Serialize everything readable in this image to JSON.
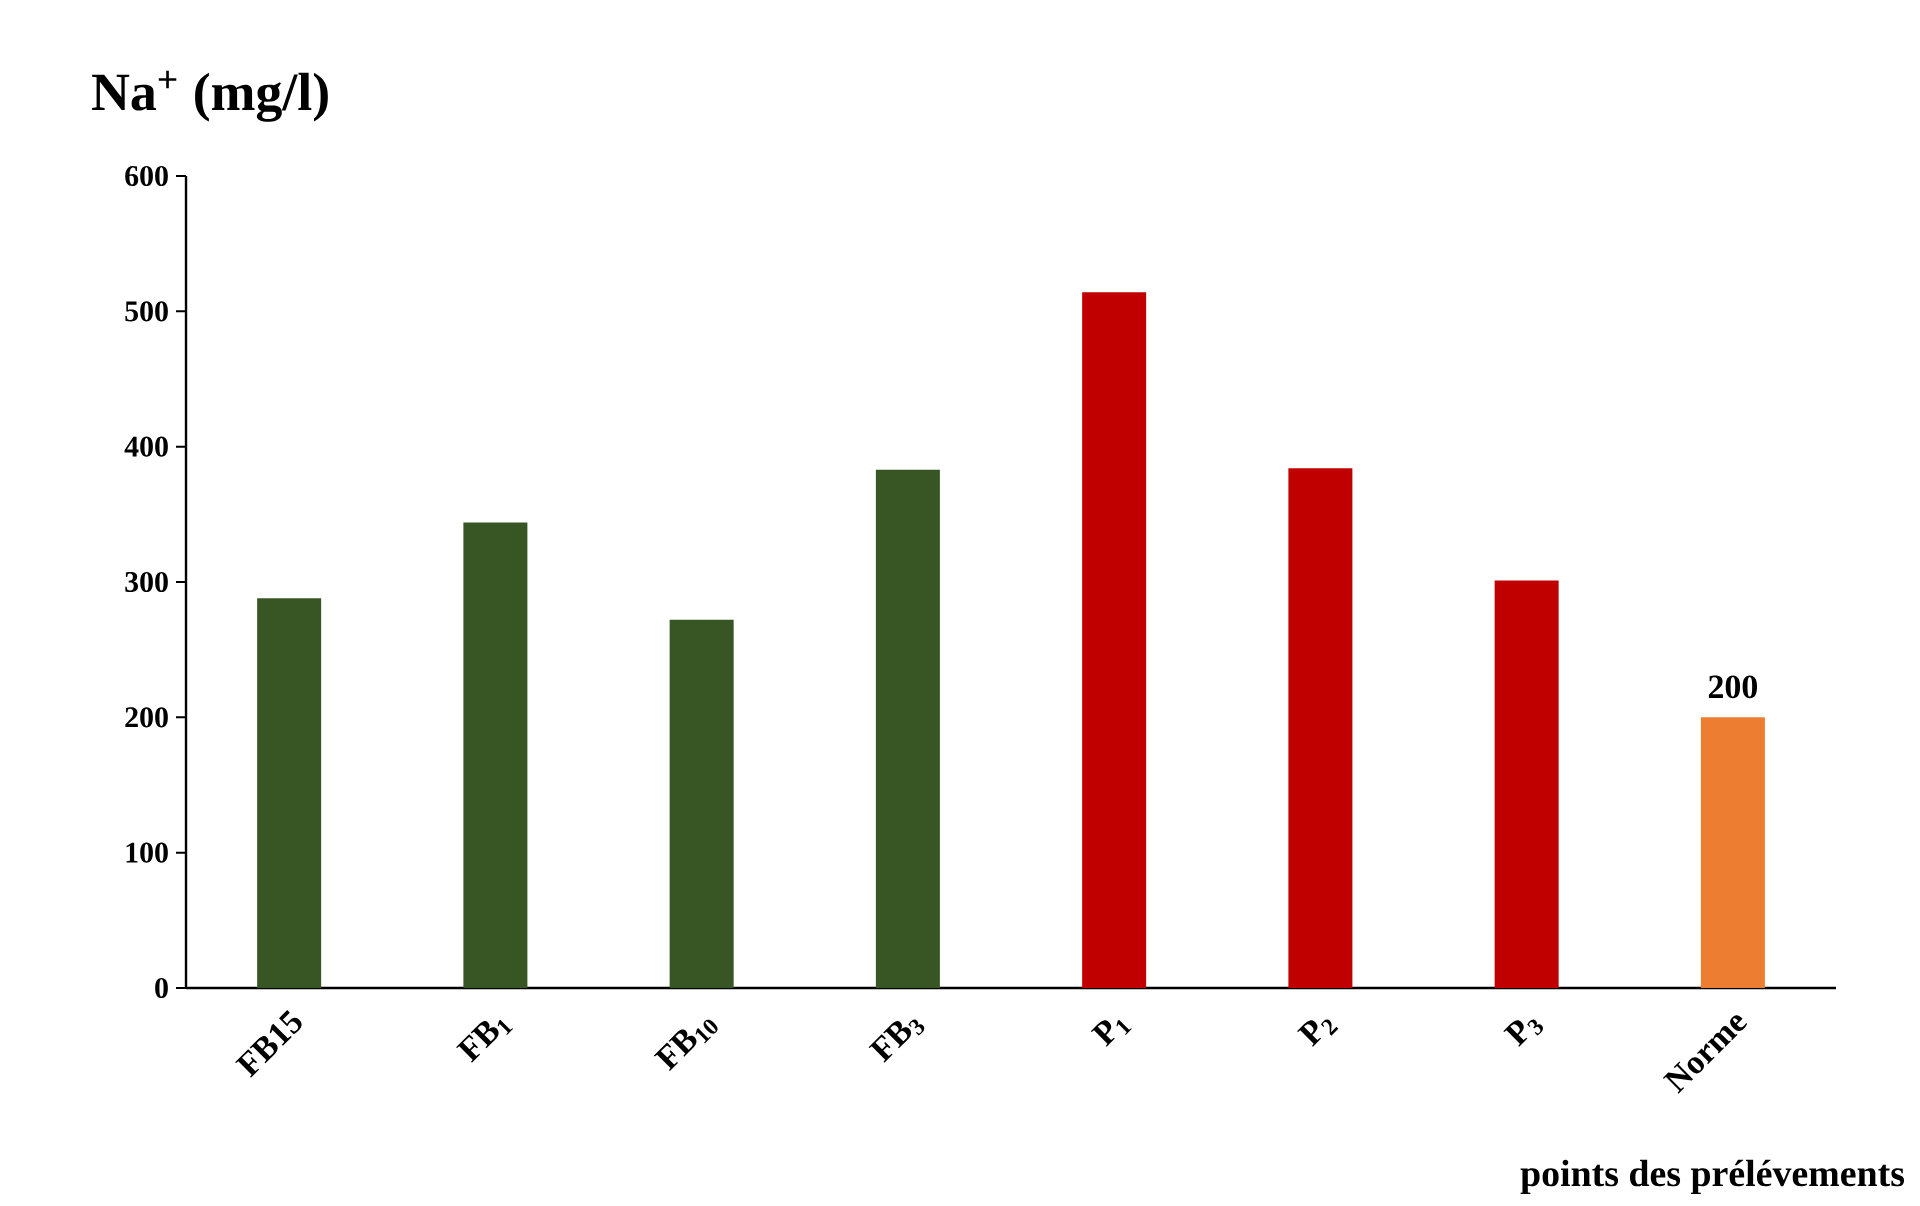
{
  "chart_data": {
    "type": "bar",
    "title": "Na$^{+}$ (mg/l)",
    "xlabel": "points des prélévements",
    "categories": [
      "FB15",
      "FB$_{1}$",
      "FB$_{10}$",
      "FB$_{3}$",
      "P$_{1}$",
      "P$_{2}$",
      "P$_{3}$",
      "Norme"
    ],
    "values": [
      288,
      344,
      272,
      383,
      514,
      384,
      301,
      200
    ],
    "colors": [
      "#375623",
      "#375623",
      "#375623",
      "#375623",
      "#c00000",
      "#c00000",
      "#c00000",
      "#ed7d31"
    ],
    "value_labels": [
      null,
      null,
      null,
      null,
      null,
      null,
      null,
      "200"
    ],
    "ylim": [
      0,
      600
    ],
    "yticks": [
      0,
      100,
      200,
      300,
      400,
      500,
      600
    ],
    "grid": false
  }
}
